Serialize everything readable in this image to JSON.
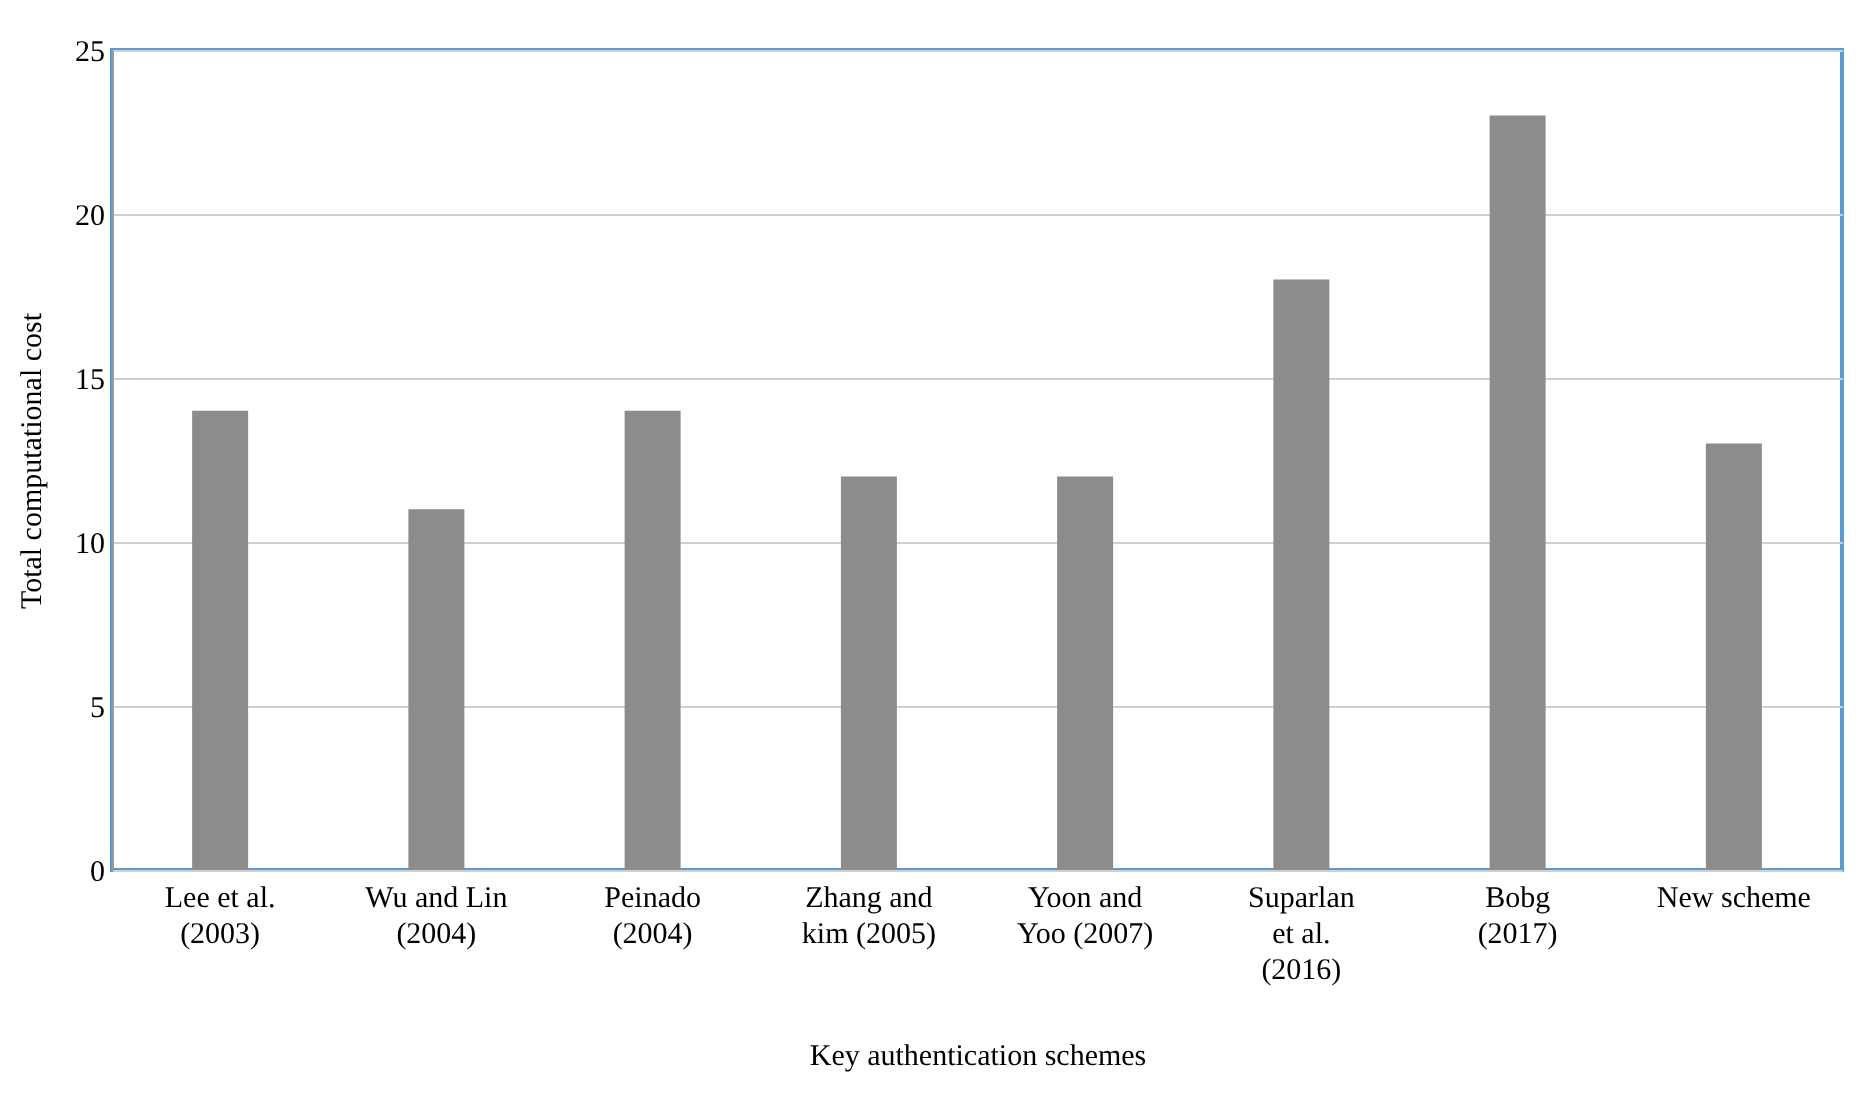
{
  "chart_data": {
    "type": "bar",
    "xlabel": "Key authentication schemes",
    "ylabel": "Total computational cost",
    "categories": [
      "Lee et al. (2003)",
      "Wu and Lin (2004)",
      "Peinado (2004)",
      "Zhang and kim (2005)",
      "Yoon and Yoo (2007)",
      "Suparlan et al. (2016)",
      "Bobg (2017)",
      "New scheme"
    ],
    "values": [
      14,
      11,
      14,
      12,
      12,
      18,
      23,
      13
    ],
    "color": "#8c8c8c",
    "ylim": [
      0,
      25
    ],
    "yticks": [
      0,
      5,
      10,
      15,
      20,
      25
    ],
    "grid": "y"
  }
}
